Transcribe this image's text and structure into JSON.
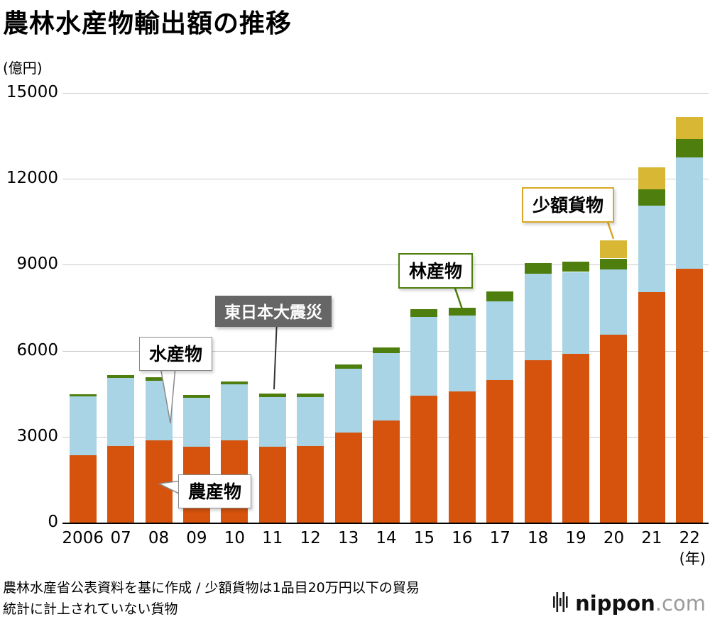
{
  "title": "農林水産物輸出額の推移",
  "y_axis": {
    "unit": "(億円)",
    "ticks": [
      15000,
      12000,
      9000,
      6000,
      3000,
      0
    ]
  },
  "x_axis": {
    "suffix": "(年)"
  },
  "chart_data": {
    "type": "bar",
    "stacked": true,
    "title": "農林水産物輸出額の推移",
    "ylabel": "(億円)",
    "xlabel": "(年)",
    "ylim": [
      0,
      15000
    ],
    "grid": true,
    "categories": [
      "2006",
      "07",
      "08",
      "09",
      "10",
      "11",
      "12",
      "13",
      "14",
      "15",
      "16",
      "17",
      "18",
      "19",
      "20",
      "21",
      "22"
    ],
    "series": [
      {
        "name": "農産物",
        "color": "#d5530d",
        "values": [
          2360,
          2680,
          2880,
          2640,
          2870,
          2650,
          2680,
          3140,
          3570,
          4430,
          4590,
          4970,
          5660,
          5880,
          6560,
          8040,
          8870
        ]
      },
      {
        "name": "水産物",
        "color": "#a8d4e5",
        "values": [
          2040,
          2380,
          2080,
          1720,
          1950,
          1740,
          1700,
          2220,
          2340,
          2760,
          2640,
          2750,
          3030,
          2870,
          2280,
          3020,
          3870
        ]
      },
      {
        "name": "林産物",
        "color": "#4e7f0e",
        "values": [
          90,
          100,
          120,
          90,
          110,
          120,
          120,
          150,
          210,
          260,
          270,
          360,
          380,
          370,
          380,
          570,
          640
        ]
      },
      {
        "name": "少額貨物",
        "color": "#d7b733",
        "values": [
          0,
          0,
          0,
          0,
          0,
          0,
          0,
          0,
          0,
          0,
          0,
          0,
          0,
          0,
          640,
          760,
          770
        ]
      }
    ],
    "annotations": [
      "水産物",
      "農産物",
      "東日本大震災",
      "林産物",
      "少額貨物"
    ]
  },
  "callouts": {
    "suisan": "水産物",
    "nosan": "農産物",
    "earthquake": "東日本大震災",
    "rinsan": "林産物",
    "shogaku": "少額貨物"
  },
  "footer": {
    "line1": "農林水産省公表資料を基に作成 / 少額貨物は1品目20万円以下の貿易",
    "line2": "統計に計上されていない貨物"
  },
  "logo": {
    "name": "nippon",
    "tld": ".com"
  }
}
